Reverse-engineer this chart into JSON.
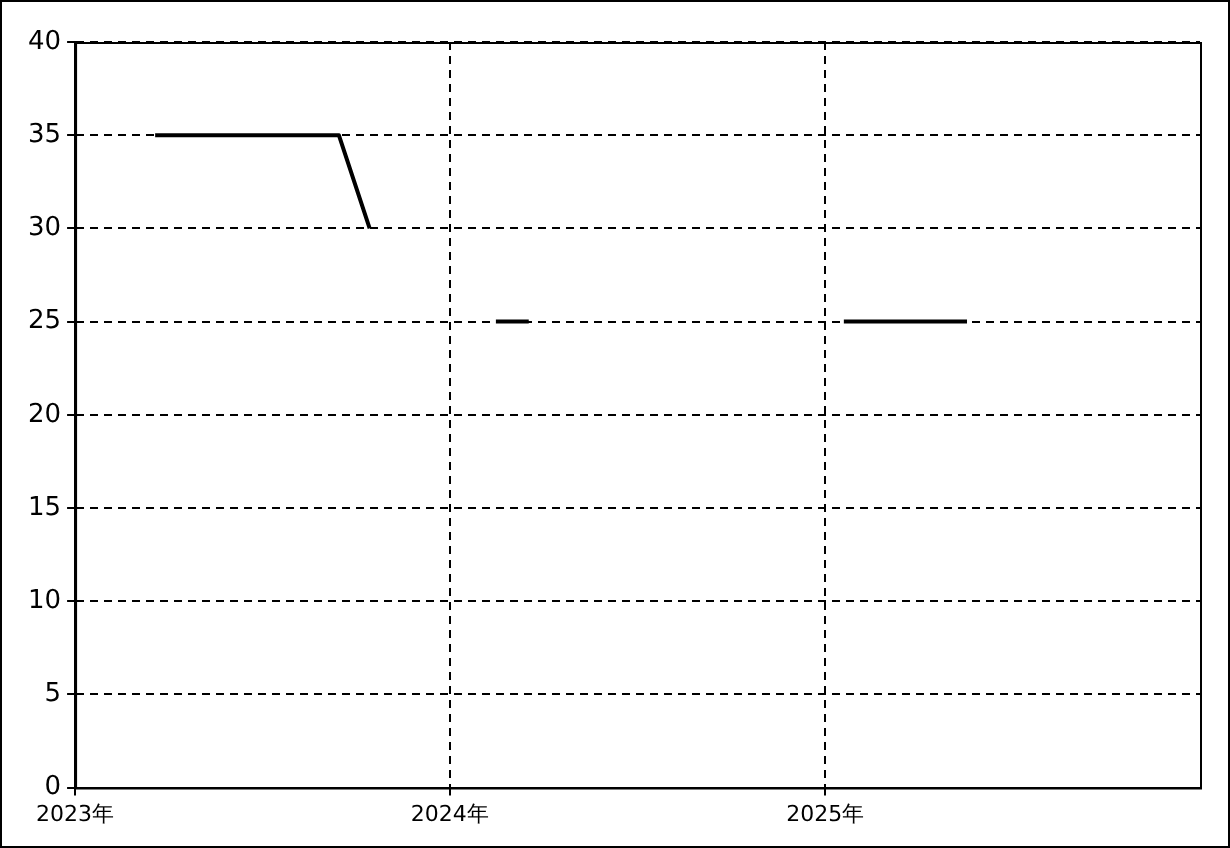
{
  "chart_data": {
    "type": "line",
    "x": [
      "2023-03-20",
      "2023-09-15",
      "2023-10-15",
      "2023-12-01",
      "2024-02-15",
      "2024-03-18",
      "2024-10-01",
      "2025-01-19",
      "2025-05-19"
    ],
    "series": [
      {
        "color": "#000000",
        "values": [
          35,
          35,
          30,
          null,
          25,
          25,
          null,
          25,
          25
        ]
      }
    ],
    "xlim": [
      "2023-01-01",
      "2026-01-01"
    ],
    "xticks": [
      {
        "value": "2023-01-01",
        "label": "2023年"
      },
      {
        "value": "2024-01-01",
        "label": "2024年"
      },
      {
        "value": "2025-01-01",
        "label": "2025年"
      }
    ],
    "ylim": [
      0,
      40
    ],
    "yticks": [
      0,
      5,
      10,
      15,
      20,
      25,
      30,
      35,
      40
    ],
    "grid": true,
    "legend": false,
    "marker": "none",
    "line_style": "solid"
  }
}
